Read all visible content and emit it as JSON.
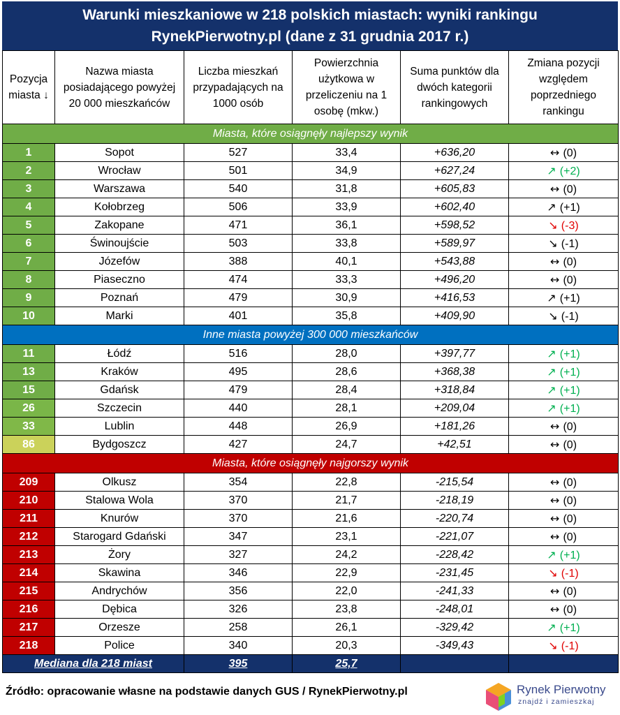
{
  "title_line1": "Warunki mieszkaniowe w 218 polskich miastach: wyniki rankingu",
  "title_line2": "RynekPierwotny.pl (dane z 31 grudnia 2017 r.)",
  "headers": [
    "Pozycja miasta ↓",
    "Nazwa miasta posiadającego powyżej 20 000 mieszkańców",
    "Liczba mieszkań przypadających na 1000 osób",
    "Powierzchnia użytkowa w przeliczeniu na 1 osobę (mkw.)",
    "Suma punktów dla dwóch kategorii rankingowych",
    "Zmiana pozycji względem poprzedniego rankingu"
  ],
  "sections": [
    {
      "label": "Miasta, które osiągnęły najlepszy wynik",
      "kind": "best",
      "rows": [
        {
          "pos": "1",
          "city": "Sopot",
          "flats": "527",
          "area": "33,4",
          "points": "+636,20",
          "change": "(0)",
          "dir": "same",
          "color": "#70ad47"
        },
        {
          "pos": "2",
          "city": "Wrocław",
          "flats": "501",
          "area": "34,9",
          "points": "+627,24",
          "change": "(+2)",
          "dir": "up-green",
          "color": "#70ad47"
        },
        {
          "pos": "3",
          "city": "Warszawa",
          "flats": "540",
          "area": "31,8",
          "points": "+605,83",
          "change": "(0)",
          "dir": "same",
          "color": "#70ad47"
        },
        {
          "pos": "4",
          "city": "Kołobrzeg",
          "flats": "506",
          "area": "33,9",
          "points": "+602,40",
          "change": "(+1)",
          "dir": "up",
          "color": "#70ad47"
        },
        {
          "pos": "5",
          "city": "Zakopane",
          "flats": "471",
          "area": "36,1",
          "points": "+598,52",
          "change": "(-3)",
          "dir": "down-red",
          "color": "#70ad47"
        },
        {
          "pos": "6",
          "city": "Świnoujście",
          "flats": "503",
          "area": "33,8",
          "points": "+589,97",
          "change": "(-1)",
          "dir": "down",
          "color": "#70ad47"
        },
        {
          "pos": "7",
          "city": "Józefów",
          "flats": "388",
          "area": "40,1",
          "points": "+543,88",
          "change": "(0)",
          "dir": "same",
          "color": "#70ad47"
        },
        {
          "pos": "8",
          "city": "Piaseczno",
          "flats": "474",
          "area": "33,3",
          "points": "+496,20",
          "change": "(0)",
          "dir": "same",
          "color": "#70ad47"
        },
        {
          "pos": "9",
          "city": "Poznań",
          "flats": "479",
          "area": "30,9",
          "points": "+416,53",
          "change": "(+1)",
          "dir": "up",
          "color": "#70ad47"
        },
        {
          "pos": "10",
          "city": "Marki",
          "flats": "401",
          "area": "35,8",
          "points": "+409,90",
          "change": "(-1)",
          "dir": "down",
          "color": "#70ad47"
        }
      ]
    },
    {
      "label": "Inne miasta powyżej 300 000 mieszkańców",
      "kind": "big",
      "rows": [
        {
          "pos": "11",
          "city": "Łódź",
          "flats": "516",
          "area": "28,0",
          "points": "+397,77",
          "change": "(+1)",
          "dir": "up-green",
          "color": "#70ad47"
        },
        {
          "pos": "13",
          "city": "Kraków",
          "flats": "495",
          "area": "28,6",
          "points": "+368,38",
          "change": "(+1)",
          "dir": "up-green",
          "color": "#70ad47"
        },
        {
          "pos": "15",
          "city": "Gdańsk",
          "flats": "479",
          "area": "28,4",
          "points": "+318,84",
          "change": "(+1)",
          "dir": "up-green",
          "color": "#70ad47"
        },
        {
          "pos": "26",
          "city": "Szczecin",
          "flats": "440",
          "area": "28,1",
          "points": "+209,04",
          "change": "(+1)",
          "dir": "up-green",
          "color": "#7ab648"
        },
        {
          "pos": "33",
          "city": "Lublin",
          "flats": "448",
          "area": "26,9",
          "points": "+181,26",
          "change": "(0)",
          "dir": "same",
          "color": "#80b848"
        },
        {
          "pos": "86",
          "city": "Bydgoszcz",
          "flats": "427",
          "area": "24,7",
          "points": "+42,51",
          "change": "(0)",
          "dir": "same",
          "color": "#cbd25a"
        }
      ]
    },
    {
      "label": "Miasta, które osiągnęły najgorszy wynik",
      "kind": "worst",
      "rows": [
        {
          "pos": "209",
          "city": "Olkusz",
          "flats": "354",
          "area": "22,8",
          "points": "-215,54",
          "change": "(0)",
          "dir": "same",
          "color": "#c00000"
        },
        {
          "pos": "210",
          "city": "Stalowa Wola",
          "flats": "370",
          "area": "21,7",
          "points": "-218,19",
          "change": "(0)",
          "dir": "same",
          "color": "#c00000"
        },
        {
          "pos": "211",
          "city": "Knurów",
          "flats": "370",
          "area": "21,6",
          "points": "-220,74",
          "change": "(0)",
          "dir": "same",
          "color": "#c00000"
        },
        {
          "pos": "212",
          "city": "Starogard Gdański",
          "flats": "347",
          "area": "23,1",
          "points": "-221,07",
          "change": "(0)",
          "dir": "same",
          "color": "#c00000"
        },
        {
          "pos": "213",
          "city": "Żory",
          "flats": "327",
          "area": "24,2",
          "points": "-228,42",
          "change": "(+1)",
          "dir": "up-green",
          "color": "#c00000"
        },
        {
          "pos": "214",
          "city": "Skawina",
          "flats": "346",
          "area": "22,9",
          "points": "-231,45",
          "change": "(-1)",
          "dir": "down-red",
          "color": "#c00000"
        },
        {
          "pos": "215",
          "city": "Andrychów",
          "flats": "356",
          "area": "22,0",
          "points": "-241,33",
          "change": "(0)",
          "dir": "same",
          "color": "#c00000"
        },
        {
          "pos": "216",
          "city": "Dębica",
          "flats": "326",
          "area": "23,8",
          "points": "-248,01",
          "change": "(0)",
          "dir": "same",
          "color": "#c00000"
        },
        {
          "pos": "217",
          "city": "Orzesze",
          "flats": "258",
          "area": "26,1",
          "points": "-329,42",
          "change": "(+1)",
          "dir": "up-green",
          "color": "#c00000"
        },
        {
          "pos": "218",
          "city": "Police",
          "flats": "340",
          "area": "20,3",
          "points": "-349,43",
          "change": "(-1)",
          "dir": "down-red",
          "color": "#c00000"
        }
      ]
    }
  ],
  "median": {
    "label": "Mediana dla 218 miast",
    "flats": "395",
    "area": "25,7"
  },
  "source": "Źródło: opracowanie własne na podstawie danych GUS / RynekPierwotny.pl",
  "logo": {
    "name": "Rynek Pierwotny",
    "tagline": "znajdź i zamieszkaj"
  },
  "arrow_glyphs": {
    "same": "↔",
    "up": "↗",
    "up-green": "↗",
    "down": "↘",
    "down-red": "↘"
  },
  "chart_data": {
    "type": "table",
    "title": "Warunki mieszkaniowe w 218 polskich miastach: wyniki rankingu RynekPierwotny.pl (dane z 31 grudnia 2017 r.)",
    "columns": [
      "Pozycja miasta",
      "Nazwa miasta posiadającego powyżej 20 000 mieszkańców",
      "Liczba mieszkań przypadających na 1000 osób",
      "Powierzchnia użytkowa w przeliczeniu na 1 osobę (mkw.)",
      "Suma punktów dla dwóch kategorii rankingowych",
      "Zmiana pozycji względem poprzedniego rankingu"
    ],
    "median": {
      "Liczba mieszkań przypadających na 1000 osób": 395,
      "Powierzchnia użytkowa w przeliczeniu na 1 osobę (mkw.)": 25.7
    }
  }
}
